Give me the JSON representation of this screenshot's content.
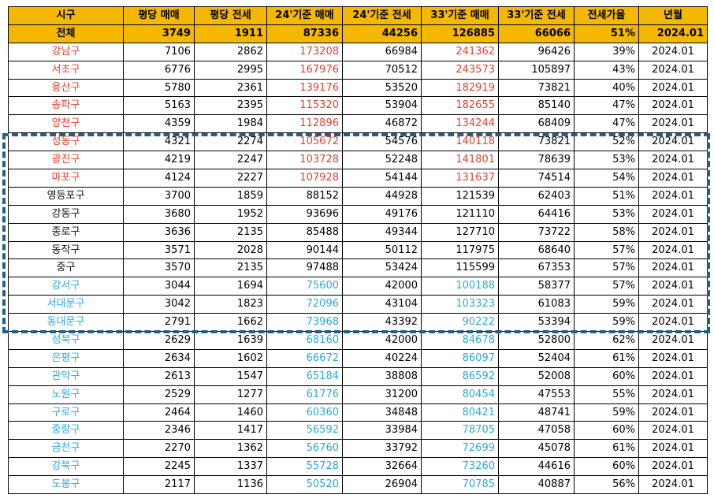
{
  "colors": {
    "header_bg": "#f5b800",
    "high": "#e8402a",
    "low": "#2aa9e0",
    "highlight_border": "#1f5f8a"
  },
  "headers": [
    "시구",
    "평당 매매",
    "평당 전세",
    "24'기준 매매",
    "24'기준 전세",
    "33'기준 매매",
    "33'기준 전세",
    "전세가율",
    "년월"
  ],
  "total": {
    "name": "전체",
    "values": [
      "3749",
      "1911",
      "87336",
      "44256",
      "126885",
      "66066",
      "51%",
      "2024.01"
    ]
  },
  "rows": [
    {
      "name": "강남구",
      "c": "red",
      "v": [
        "7106",
        "2862",
        "173208",
        "66984",
        "241362",
        "96426",
        "39%",
        "2024.01"
      ]
    },
    {
      "name": "서초구",
      "c": "red",
      "v": [
        "6776",
        "2995",
        "167976",
        "70512",
        "243573",
        "105897",
        "43%",
        "2024.01"
      ]
    },
    {
      "name": "용산구",
      "c": "red",
      "v": [
        "5780",
        "2361",
        "139176",
        "53520",
        "182919",
        "73821",
        "40%",
        "2024.01"
      ]
    },
    {
      "name": "송파구",
      "c": "red",
      "v": [
        "5163",
        "2395",
        "115320",
        "53904",
        "182655",
        "85140",
        "47%",
        "2024.01"
      ]
    },
    {
      "name": "양천구",
      "c": "red",
      "v": [
        "4359",
        "1984",
        "112896",
        "46872",
        "134244",
        "68409",
        "47%",
        "2024.01"
      ]
    },
    {
      "name": "성동구",
      "c": "red",
      "v": [
        "4321",
        "2274",
        "105672",
        "54576",
        "140118",
        "73821",
        "52%",
        "2024.01"
      ]
    },
    {
      "name": "광진구",
      "c": "red",
      "v": [
        "4219",
        "2247",
        "103728",
        "52248",
        "141801",
        "78639",
        "53%",
        "2024.01"
      ]
    },
    {
      "name": "마포구",
      "c": "red",
      "v": [
        "4124",
        "2227",
        "107928",
        "54144",
        "131637",
        "74514",
        "54%",
        "2024.01"
      ]
    },
    {
      "name": "영등포구",
      "c": "black",
      "v": [
        "3700",
        "1859",
        "88152",
        "44928",
        "121539",
        "62403",
        "51%",
        "2024.01"
      ]
    },
    {
      "name": "강동구",
      "c": "black",
      "v": [
        "3680",
        "1952",
        "93696",
        "49176",
        "121110",
        "64416",
        "53%",
        "2024.01"
      ]
    },
    {
      "name": "종로구",
      "c": "black",
      "v": [
        "3636",
        "2135",
        "85488",
        "49344",
        "127710",
        "73722",
        "58%",
        "2024.01"
      ]
    },
    {
      "name": "동작구",
      "c": "black",
      "v": [
        "3571",
        "2028",
        "90144",
        "50112",
        "117975",
        "68640",
        "57%",
        "2024.01"
      ]
    },
    {
      "name": "중구",
      "c": "black",
      "v": [
        "3570",
        "2135",
        "97488",
        "53424",
        "115599",
        "67353",
        "57%",
        "2024.01"
      ]
    },
    {
      "name": "강서구",
      "c": "blue",
      "v": [
        "3044",
        "1694",
        "75600",
        "42000",
        "100188",
        "58377",
        "57%",
        "2024.01"
      ]
    },
    {
      "name": "서대문구",
      "c": "blue",
      "v": [
        "3042",
        "1823",
        "72096",
        "43104",
        "103323",
        "61083",
        "59%",
        "2024.01"
      ]
    },
    {
      "name": "동대문구",
      "c": "blue",
      "v": [
        "2791",
        "1662",
        "73968",
        "43392",
        "90222",
        "53394",
        "59%",
        "2024.01"
      ]
    },
    {
      "name": "성북구",
      "c": "blue",
      "v": [
        "2629",
        "1639",
        "68160",
        "42000",
        "84678",
        "52800",
        "62%",
        "2024.01"
      ]
    },
    {
      "name": "은평구",
      "c": "blue",
      "v": [
        "2634",
        "1602",
        "66672",
        "40224",
        "86097",
        "52404",
        "61%",
        "2024.01"
      ]
    },
    {
      "name": "관악구",
      "c": "blue",
      "v": [
        "2613",
        "1547",
        "65184",
        "38808",
        "86592",
        "52008",
        "60%",
        "2024.01"
      ]
    },
    {
      "name": "노원구",
      "c": "blue",
      "v": [
        "2529",
        "1277",
        "61776",
        "31200",
        "80454",
        "47553",
        "55%",
        "2024.01"
      ]
    },
    {
      "name": "구로구",
      "c": "blue",
      "v": [
        "2464",
        "1460",
        "60360",
        "34848",
        "80421",
        "48741",
        "59%",
        "2024.01"
      ]
    },
    {
      "name": "중랑구",
      "c": "blue",
      "v": [
        "2346",
        "1417",
        "56592",
        "33984",
        "78705",
        "47058",
        "60%",
        "2024.01"
      ]
    },
    {
      "name": "금천구",
      "c": "blue",
      "v": [
        "2270",
        "1362",
        "56760",
        "33792",
        "72699",
        "45078",
        "61%",
        "2024.01"
      ]
    },
    {
      "name": "강북구",
      "c": "blue",
      "v": [
        "2245",
        "1337",
        "55728",
        "32664",
        "73260",
        "44616",
        "60%",
        "2024.01"
      ]
    },
    {
      "name": "도봉구",
      "c": "blue",
      "v": [
        "2117",
        "1136",
        "50520",
        "26904",
        "70785",
        "40887",
        "56%",
        "2024.01"
      ]
    }
  ]
}
